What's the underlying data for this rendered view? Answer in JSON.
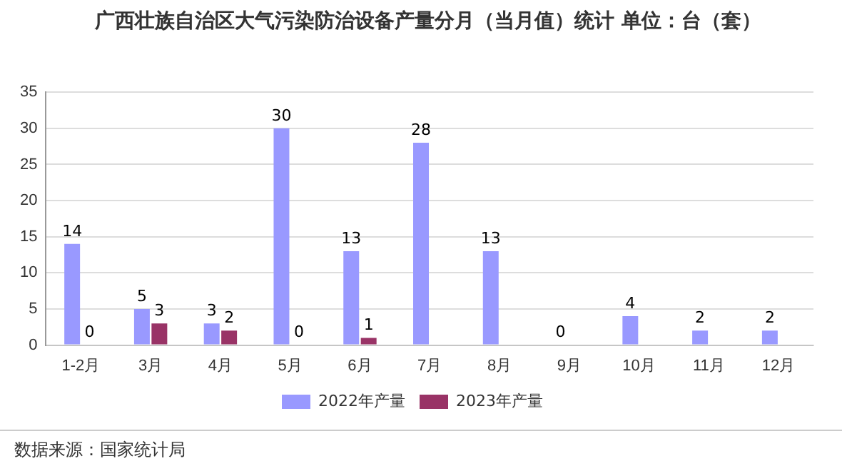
{
  "chart_data": {
    "type": "bar",
    "title": "广西壮族自治区大气污染防治设备产量分月（当月值）统计 单位：台（套）",
    "categories": [
      "1-2月",
      "3月",
      "4月",
      "5月",
      "6月",
      "7月",
      "8月",
      "9月",
      "10月",
      "11月",
      "12月"
    ],
    "series": [
      {
        "name": "2022年产量",
        "color": "#9999ff",
        "values": [
          14,
          5,
          3,
          30,
          13,
          28,
          13,
          0,
          4,
          2,
          2
        ]
      },
      {
        "name": "2023年产量",
        "color": "#993366",
        "values": [
          0,
          3,
          2,
          0,
          1,
          null,
          null,
          null,
          null,
          null,
          null
        ]
      }
    ],
    "ylim": [
      0,
      35
    ],
    "yticks": [
      0,
      5,
      10,
      15,
      20,
      25,
      30,
      35
    ],
    "grid": "y",
    "legend": "bottom",
    "data_labels": true,
    "annotations": [
      "数据来源：国家统计局"
    ]
  }
}
